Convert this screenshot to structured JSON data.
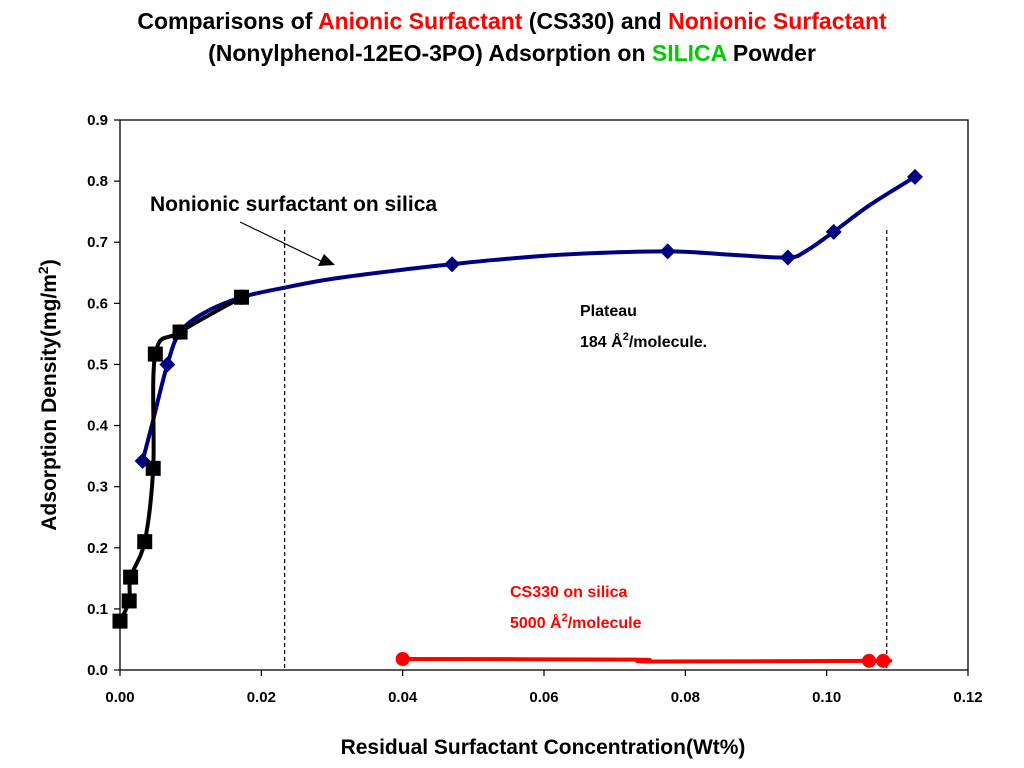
{
  "title": {
    "line1": [
      {
        "text": "Comparisons of ",
        "color": "#000000"
      },
      {
        "text": "Anionic Surfactant",
        "color": "#ff0000"
      },
      {
        "text": " (CS330) and ",
        "color": "#000000"
      },
      {
        "text": "Nonionic Surfactant",
        "color": "#ff0000"
      }
    ],
    "line2": [
      {
        "text": "(Nonylphenol-12EO-3PO) Adsorption on ",
        "color": "#000000"
      },
      {
        "text": "SILICA",
        "color": "#00cc00"
      },
      {
        "text": " Powder",
        "color": "#000000"
      }
    ]
  },
  "chart_data": {
    "type": "line",
    "xlabel": "Residual Surfactant Concentration(Wt%)",
    "ylabel_main": "Adsorption Density(mg/m",
    "ylabel_sup": "2",
    "ylabel_end": ")",
    "xlim": [
      0,
      0.12
    ],
    "ylim": [
      0,
      0.9
    ],
    "xticks": [
      "0.00",
      "0.02",
      "0.04",
      "0.06",
      "0.08",
      "0.10",
      "0.12"
    ],
    "yticks": [
      "0.0",
      "0.1",
      "0.2",
      "0.3",
      "0.4",
      "0.5",
      "0.6",
      "0.7",
      "0.8",
      "0.9"
    ],
    "grid": false,
    "series": [
      {
        "color": "#000080",
        "marker": "diamond",
        "x": [
          0.0032,
          0.0067,
          0.0085,
          0.0172,
          0.047,
          0.0775,
          0.0945,
          0.101,
          0.1125
        ],
        "y": [
          0.342,
          0.5,
          0.553,
          0.61,
          0.664,
          0.685,
          0.675,
          0.717,
          0.807
        ],
        "curve_x": [
          0.0032,
          0.0045,
          0.0067,
          0.0085,
          0.012,
          0.0172,
          0.023,
          0.03,
          0.04,
          0.047,
          0.053,
          0.063,
          0.0775,
          0.087,
          0.0945,
          0.097,
          0.101,
          0.106,
          0.1125
        ],
        "curve_y": [
          0.342,
          0.4,
          0.5,
          0.553,
          0.585,
          0.61,
          0.625,
          0.64,
          0.655,
          0.664,
          0.671,
          0.68,
          0.685,
          0.679,
          0.675,
          0.685,
          0.717,
          0.76,
          0.807
        ]
      },
      {
        "color": "#000000",
        "marker": "square",
        "x": [
          0.0,
          0.0013,
          0.0015,
          0.0035,
          0.0047,
          0.005,
          0.0085,
          0.0172
        ],
        "y": [
          0.08,
          0.113,
          0.152,
          0.21,
          0.33,
          0.517,
          0.553,
          0.61
        ],
        "curve_x": [
          0.0,
          0.0013,
          0.0015,
          0.0035,
          0.0047,
          0.005,
          0.0085,
          0.0172
        ],
        "curve_y": [
          0.08,
          0.113,
          0.152,
          0.21,
          0.33,
          0.517,
          0.553,
          0.61
        ]
      },
      {
        "color": "#ff0000",
        "marker": "circle",
        "x": [
          0.04,
          0.106,
          0.108
        ],
        "y": [
          0.018,
          0.015,
          0.015
        ],
        "curve_x": [
          0.04,
          0.073,
          0.075,
          0.106,
          0.108
        ],
        "curve_y": [
          0.018,
          0.017,
          0.014,
          0.015,
          0.015
        ]
      }
    ],
    "dashed_lines_x": [
      0.0233,
      0.1085
    ],
    "annotations": {
      "nonionic_label": "Nonionic surfactant on silica",
      "plateau_line1": "Plateau",
      "plateau_line2_a": "184 Å",
      "plateau_line2_sup": "2",
      "plateau_line2_b": "/molecule.",
      "cs330_line1": "CS330 on silica",
      "cs330_line2_a": "5000 Å",
      "cs330_line2_sup": "2",
      "cs330_line2_b": "/molecule",
      "cs330_color": "#ff0000"
    }
  }
}
